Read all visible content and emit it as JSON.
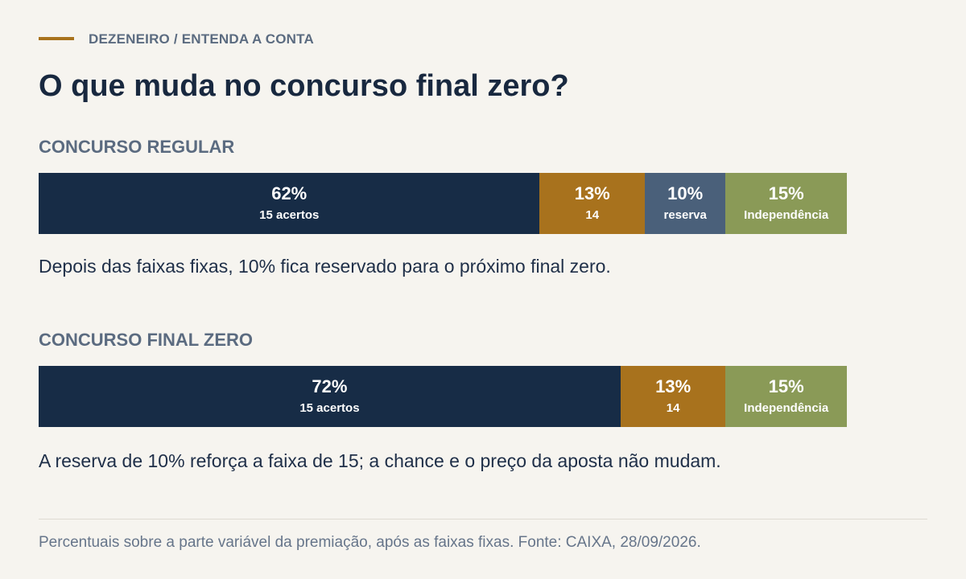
{
  "header": {
    "kicker": "DEZENEIRO / ENTENDA A CONTA",
    "title": "O que muda no concurso final zero?"
  },
  "colors": {
    "accent": "#a8721d",
    "navy": "#172c46",
    "gold": "#a8721d",
    "slate": "#4a607a",
    "olive": "#8a9a57"
  },
  "chart_data": [
    {
      "type": "bar",
      "orientation": "horizontal-stacked",
      "title": "CONCURSO REGULAR",
      "unit": "%",
      "xlim": [
        0,
        100
      ],
      "series": [
        {
          "name": "15 acertos",
          "value": 62,
          "label": "62%",
          "color": "#172c46"
        },
        {
          "name": "14",
          "value": 13,
          "label": "13%",
          "color": "#a8721d"
        },
        {
          "name": "reserva",
          "value": 10,
          "label": "10%",
          "color": "#4a607a"
        },
        {
          "name": "Independência",
          "value": 15,
          "label": "15%",
          "color": "#8a9a57"
        }
      ],
      "caption": "Depois das faixas fixas, 10% fica reservado para o próximo final zero."
    },
    {
      "type": "bar",
      "orientation": "horizontal-stacked",
      "title": "CONCURSO FINAL ZERO",
      "unit": "%",
      "xlim": [
        0,
        100
      ],
      "series": [
        {
          "name": "15 acertos",
          "value": 72,
          "label": "72%",
          "color": "#172c46"
        },
        {
          "name": "14",
          "value": 13,
          "label": "13%",
          "color": "#a8721d"
        },
        {
          "name": "Independência",
          "value": 15,
          "label": "15%",
          "color": "#8a9a57"
        }
      ],
      "caption": "A reserva de 10% reforça a faixa de 15; a chance e o preço da aposta não mudam."
    }
  ],
  "footer": {
    "note": "Percentuais sobre a parte variável da premiação, após as faixas fixas. Fonte: CAIXA, 28/09/2026."
  }
}
